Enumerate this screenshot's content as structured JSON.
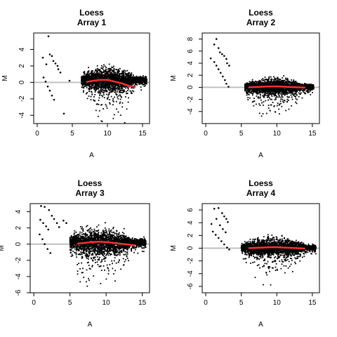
{
  "chart_data": [
    {
      "type": "scatter",
      "title": "Loess",
      "subtitle": "Array 1",
      "xlabel": "A",
      "ylabel": "M",
      "xlim": [
        -0.5,
        16
      ],
      "ylim": [
        -5,
        6
      ],
      "xticks": [
        0,
        5,
        10,
        15
      ],
      "yticks": [
        -4,
        -2,
        0,
        2,
        4
      ],
      "grid": false,
      "reference_line": {
        "y": 0,
        "color": "#c0c0c0"
      },
      "point_color": "#000000",
      "cloud": {
        "x_range": [
          6.3,
          15.6
        ],
        "center_x": 10,
        "center_y": 0.3,
        "spread": 1.25,
        "lower_tail": true
      },
      "sparse_points": [
        {
          "x": 1.6,
          "y": 5.6
        },
        {
          "x": 1.8,
          "y": 3.4
        },
        {
          "x": 2.1,
          "y": 3.2
        },
        {
          "x": 0.8,
          "y": 3.0
        },
        {
          "x": 2.3,
          "y": 2.6
        },
        {
          "x": 1.3,
          "y": 2.2
        },
        {
          "x": 2.6,
          "y": 2.3
        },
        {
          "x": 2.9,
          "y": 2.0
        },
        {
          "x": 3.0,
          "y": 1.6
        },
        {
          "x": 3.3,
          "y": 1.2
        },
        {
          "x": 0.9,
          "y": 0.6
        },
        {
          "x": 1.2,
          "y": 0.1
        },
        {
          "x": 1.5,
          "y": -0.5
        },
        {
          "x": 1.8,
          "y": -1.0
        },
        {
          "x": 2.1,
          "y": -1.6
        },
        {
          "x": 2.4,
          "y": -2.1
        },
        {
          "x": 3.8,
          "y": -3.8
        },
        {
          "x": 4.6,
          "y": 0.2
        }
      ],
      "loess_curve": {
        "color": "#ff3030",
        "x": [
          7,
          8,
          9,
          10,
          11,
          12,
          13,
          14
        ],
        "y": [
          0.05,
          0.2,
          0.3,
          0.3,
          0.1,
          -0.1,
          -0.4,
          -0.6
        ]
      }
    },
    {
      "type": "scatter",
      "title": "Loess",
      "subtitle": "Array 2",
      "xlabel": "A",
      "ylabel": "M",
      "xlim": [
        -0.5,
        16
      ],
      "ylim": [
        -6,
        9
      ],
      "xticks": [
        0,
        5,
        10,
        15
      ],
      "yticks": [
        -4,
        -2,
        0,
        2,
        4,
        6,
        8
      ],
      "grid": false,
      "reference_line": {
        "y": 0,
        "color": "#c0c0c0"
      },
      "point_color": "#000000",
      "cloud": {
        "x_range": [
          5.5,
          15.2
        ],
        "center_x": 9.5,
        "center_y": 0.1,
        "spread": 1.2,
        "lower_tail": true
      },
      "sparse_points": [
        {
          "x": 1.5,
          "y": 8.0
        },
        {
          "x": 1.2,
          "y": 7.1
        },
        {
          "x": 1.8,
          "y": 6.5
        },
        {
          "x": 2.0,
          "y": 5.8
        },
        {
          "x": 2.3,
          "y": 5.5
        },
        {
          "x": 2.6,
          "y": 5.2
        },
        {
          "x": 2.9,
          "y": 4.7
        },
        {
          "x": 3.0,
          "y": 4.0
        },
        {
          "x": 3.3,
          "y": 3.6
        },
        {
          "x": 0.7,
          "y": 4.8
        },
        {
          "x": 1.2,
          "y": 4.2
        },
        {
          "x": 1.5,
          "y": 3.6
        },
        {
          "x": 1.8,
          "y": 3.0
        },
        {
          "x": 2.1,
          "y": 2.4
        },
        {
          "x": 2.4,
          "y": 1.8
        },
        {
          "x": 2.7,
          "y": 1.2
        },
        {
          "x": 2.9,
          "y": 0.6
        },
        {
          "x": 3.2,
          "y": 0.1
        }
      ],
      "loess_curve": {
        "color": "#ff3030",
        "x": [
          6,
          7,
          8,
          9,
          10,
          11,
          12,
          13,
          14
        ],
        "y": [
          0.0,
          0.05,
          0.1,
          0.15,
          0.15,
          0.1,
          0.05,
          0.0,
          -0.05
        ]
      }
    },
    {
      "type": "scatter",
      "title": "Loess",
      "subtitle": "Array 3",
      "xlabel": "A",
      "ylabel": "M",
      "xlim": [
        -0.5,
        16
      ],
      "ylim": [
        -6,
        5
      ],
      "xticks": [
        0,
        5,
        10,
        15
      ],
      "yticks": [
        -6,
        -4,
        -2,
        0,
        2,
        4
      ],
      "grid": false,
      "reference_line": {
        "y": 0,
        "color": "#c0c0c0"
      },
      "point_color": "#000000",
      "cloud": {
        "x_range": [
          5.0,
          15.5
        ],
        "center_x": 9,
        "center_y": 0.2,
        "spread": 1.4,
        "lower_tail": true
      },
      "sparse_points": [
        {
          "x": 1.0,
          "y": 4.7
        },
        {
          "x": 1.5,
          "y": 4.6
        },
        {
          "x": 2.1,
          "y": 4.2
        },
        {
          "x": 2.5,
          "y": 3.5
        },
        {
          "x": 2.8,
          "y": 3.1
        },
        {
          "x": 3.2,
          "y": 2.6
        },
        {
          "x": 3.5,
          "y": 2.1
        },
        {
          "x": 0.9,
          "y": 3.0
        },
        {
          "x": 1.3,
          "y": 2.6
        },
        {
          "x": 1.7,
          "y": 2.2
        },
        {
          "x": 2.0,
          "y": 1.8
        },
        {
          "x": 0.8,
          "y": 1.2
        },
        {
          "x": 1.2,
          "y": 0.6
        },
        {
          "x": 1.5,
          "y": 0.0
        },
        {
          "x": 1.9,
          "y": -0.6
        },
        {
          "x": 2.3,
          "y": -1.1
        },
        {
          "x": 4.1,
          "y": 2.9
        },
        {
          "x": 4.5,
          "y": 2.6
        }
      ],
      "loess_curve": {
        "color": "#ff3030",
        "x": [
          6,
          7,
          8,
          9,
          10,
          11,
          12,
          13,
          14
        ],
        "y": [
          0.05,
          0.15,
          0.25,
          0.3,
          0.25,
          0.15,
          0.05,
          -0.05,
          -0.15
        ]
      }
    },
    {
      "type": "scatter",
      "title": "Loess",
      "subtitle": "Array 4",
      "xlabel": "A",
      "ylabel": "M",
      "xlim": [
        -0.5,
        16
      ],
      "ylim": [
        -7,
        7
      ],
      "xticks": [
        0,
        5,
        10,
        15
      ],
      "yticks": [
        -6,
        -4,
        -2,
        0,
        2,
        4,
        6
      ],
      "grid": false,
      "reference_line": {
        "y": 0,
        "color": "#c0c0c0"
      },
      "point_color": "#000000",
      "cloud": {
        "x_range": [
          5.0,
          15.5
        ],
        "center_x": 9.5,
        "center_y": 0.1,
        "spread": 1.3,
        "lower_tail": true
      },
      "sparse_points": [
        {
          "x": 1.2,
          "y": 6.2
        },
        {
          "x": 1.8,
          "y": 6.3
        },
        {
          "x": 2.3,
          "y": 5.5
        },
        {
          "x": 2.6,
          "y": 5.0
        },
        {
          "x": 2.9,
          "y": 4.6
        },
        {
          "x": 3.1,
          "y": 4.1
        },
        {
          "x": 0.8,
          "y": 3.8
        },
        {
          "x": 1.5,
          "y": 4.6
        },
        {
          "x": 2.0,
          "y": 3.6
        },
        {
          "x": 2.4,
          "y": 3.0
        },
        {
          "x": 2.8,
          "y": 2.5
        },
        {
          "x": 1.0,
          "y": 2.6
        },
        {
          "x": 1.4,
          "y": 2.1
        },
        {
          "x": 1.8,
          "y": 1.6
        },
        {
          "x": 2.2,
          "y": 1.1
        },
        {
          "x": 2.6,
          "y": 0.6
        },
        {
          "x": 3.0,
          "y": 0.1
        },
        {
          "x": 3.3,
          "y": -0.2
        }
      ],
      "loess_curve": {
        "color": "#ff3030",
        "x": [
          6,
          7,
          8,
          9,
          10,
          11,
          12,
          13,
          14
        ],
        "y": [
          0.0,
          0.05,
          0.1,
          0.15,
          0.15,
          0.1,
          0.05,
          0.0,
          -0.05
        ]
      }
    }
  ]
}
